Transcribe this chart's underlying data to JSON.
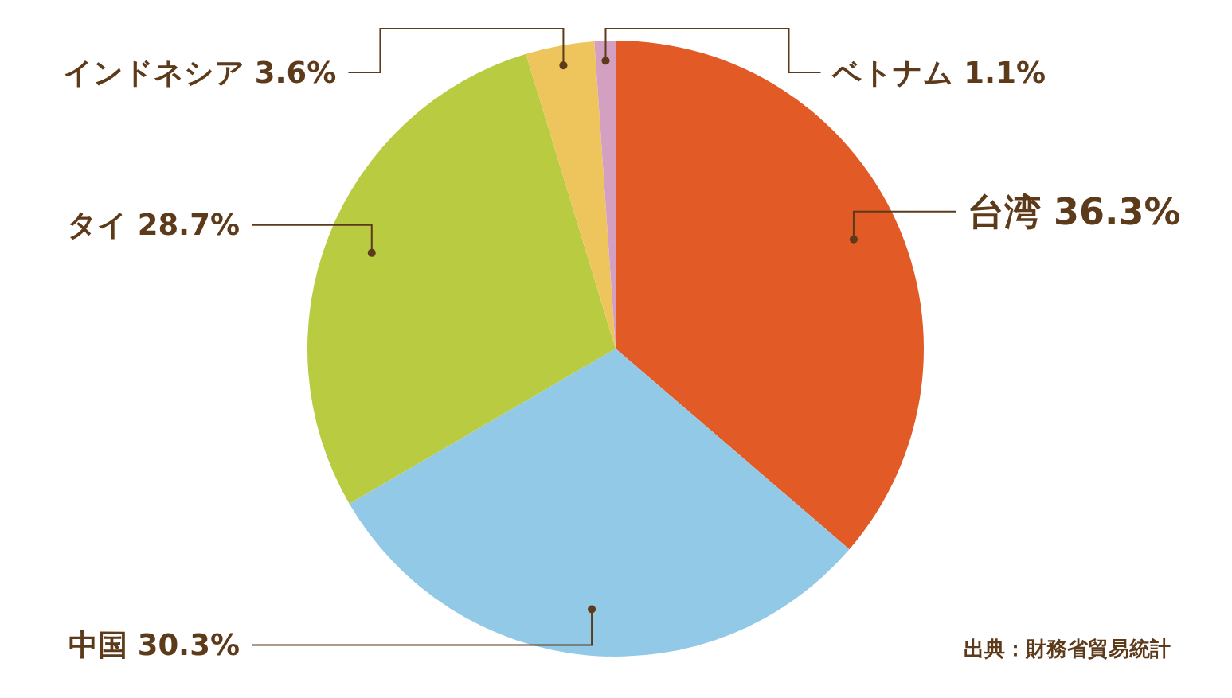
{
  "chart_data": {
    "type": "pie",
    "categories": [
      "台湾",
      "中国",
      "タイ",
      "インドネシア",
      "ベトナム"
    ],
    "values": [
      36.3,
      30.3,
      28.7,
      3.6,
      1.1
    ],
    "value_labels": [
      "36.3%",
      "30.3%",
      "28.7%",
      "3.6%",
      "1.1%"
    ],
    "colors": [
      "#e25a26",
      "#92c9e6",
      "#b8cb41",
      "#eec45c",
      "#d4a0c2"
    ],
    "annotations": [
      "出典：財務省貿易統計"
    ]
  }
}
